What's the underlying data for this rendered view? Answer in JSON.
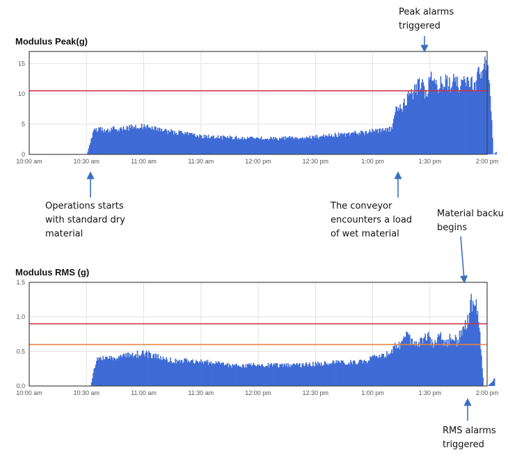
{
  "chart_data": [
    {
      "type": "area",
      "title": "Modulus Peak(g)",
      "x_tick_labels": [
        "10:00 am",
        "10:30 am",
        "11:00 am",
        "11:30 am",
        "12:00 pm",
        "12:30 pm",
        "1:00 pm",
        "1:30 pm",
        "2:00 pm"
      ],
      "xlim_minutes_after_10am": [
        0,
        240
      ],
      "ylim": [
        0,
        17
      ],
      "y_tick_labels": [
        "0",
        "5",
        "10",
        "15"
      ],
      "y_ticks": [
        0,
        5,
        10,
        15
      ],
      "grid": true,
      "threshold_lines": [
        {
          "value": 10.5,
          "color": "#cc3344"
        }
      ],
      "series_color": "#3e6bd6",
      "series": [
        {
          "x_minutes_after_10am": [
            30,
            34,
            40,
            45,
            50,
            55,
            60,
            65,
            70,
            75,
            80,
            85,
            90,
            95,
            100,
            105,
            110,
            115,
            120,
            125,
            130,
            135,
            140,
            145,
            150,
            155,
            160,
            165,
            170,
            175,
            180,
            185,
            190,
            192,
            195,
            198,
            200,
            203,
            205,
            208,
            210,
            213,
            215,
            218,
            220,
            223,
            225,
            228,
            230,
            233,
            235,
            237,
            239,
            241,
            243,
            245
          ],
          "values": [
            0,
            4.2,
            4.0,
            4.2,
            4.4,
            4.5,
            4.8,
            4.3,
            4.0,
            3.7,
            3.5,
            3.2,
            3.0,
            2.9,
            2.8,
            2.8,
            2.7,
            2.7,
            2.7,
            2.6,
            2.6,
            2.7,
            2.7,
            2.8,
            2.9,
            3.0,
            3.2,
            3.3,
            3.5,
            3.6,
            3.8,
            4.0,
            4.2,
            8.0,
            7.5,
            9.5,
            10.0,
            11.0,
            12.0,
            9.5,
            13.0,
            11.0,
            11.5,
            12.0,
            11.5,
            12.5,
            11.0,
            12.0,
            12.5,
            11.0,
            13.0,
            14.0,
            14.8,
            13.0,
            0,
            0.5
          ]
        }
      ]
    },
    {
      "type": "area",
      "title": "Modulus RMS (g)",
      "x_tick_labels": [
        "10:00 am",
        "10:30 am",
        "11:00 am",
        "11:30 am",
        "12:00 pm",
        "12:30 pm",
        "1:00 pm",
        "1:30 pm",
        "2:00 pm"
      ],
      "xlim_minutes_after_10am": [
        0,
        240
      ],
      "ylim": [
        0,
        1.5
      ],
      "y_tick_labels": [
        "0.0",
        "0.5",
        "1.0",
        "1.5"
      ],
      "y_ticks": [
        0,
        0.5,
        1.0,
        1.5
      ],
      "grid": true,
      "threshold_lines": [
        {
          "value": 0.6,
          "color": "#e8843a"
        },
        {
          "value": 0.9,
          "color": "#cc3344"
        }
      ],
      "series_color": "#3e6bd6",
      "series": [
        {
          "x_minutes_after_10am": [
            32,
            35,
            41,
            47,
            53,
            62,
            69,
            75,
            85,
            95,
            105,
            115,
            125,
            135,
            145,
            155,
            165,
            170,
            175,
            178,
            182,
            185,
            188,
            191,
            194,
            197,
            200,
            203,
            206,
            209,
            212,
            215,
            218,
            221,
            224,
            227,
            230,
            231,
            234,
            236,
            238,
            240,
            242,
            244
          ],
          "values": [
            0,
            0.4,
            0.4,
            0.43,
            0.46,
            0.46,
            0.4,
            0.36,
            0.36,
            0.34,
            0.3,
            0.3,
            0.3,
            0.3,
            0.31,
            0.33,
            0.34,
            0.34,
            0.35,
            0.38,
            0.42,
            0.45,
            0.47,
            0.55,
            0.6,
            0.72,
            0.66,
            0.62,
            0.66,
            0.7,
            0.6,
            0.72,
            0.62,
            0.7,
            0.65,
            0.8,
            1.0,
            1.18,
            1.28,
            0.7,
            0,
            0,
            0.05,
            0.12
          ]
        }
      ]
    }
  ],
  "annotations": {
    "peak_alarms": "Peak alarms\ntriggered",
    "operations_start": "Operations starts\nwith standard dry\nmaterial",
    "wet_material": "The conveyor\nencounters a load\nof wet material",
    "backup": "Material backu\nbegins",
    "rms_alarms": "RMS alarms\ntriggered"
  }
}
